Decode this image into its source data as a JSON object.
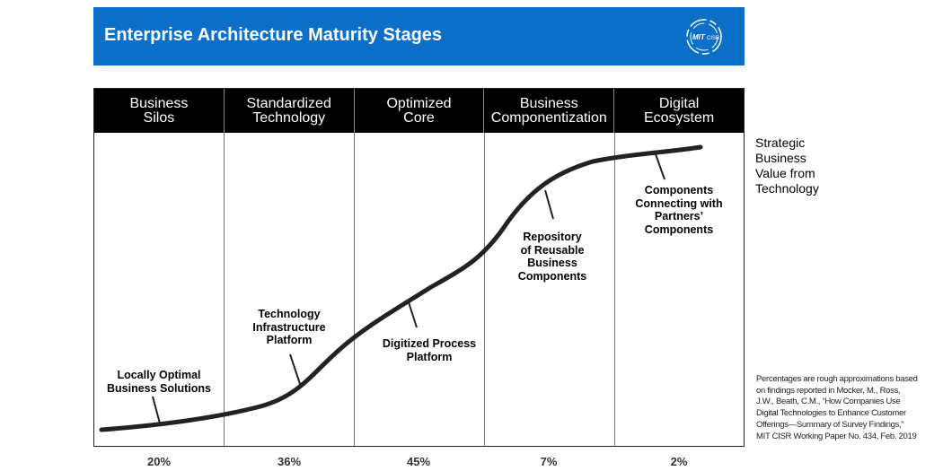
{
  "title": "Enterprise Architecture Maturity Stages",
  "logo": {
    "text": "MIT CISR",
    "icon": "mit-cisr-logo"
  },
  "stages": [
    {
      "label": "Business\nSilos",
      "percent": "20%"
    },
    {
      "label": "Standardized\nTechnology",
      "percent": "36%"
    },
    {
      "label": "Optimized\nCore",
      "percent": "45%"
    },
    {
      "label": "Business\nComponentization",
      "percent": "7%"
    },
    {
      "label": "Digital\nEcosystem",
      "percent": "2%"
    }
  ],
  "callouts": [
    "Locally Optimal\nBusiness Solutions",
    "Technology\nInfrastructure\nPlatform",
    "Digitized Process\nPlatform",
    "Repository\nof Reusable\nBusiness\nComponents",
    "Components\nConnecting with\nPartners’\nComponents"
  ],
  "y_label": "Strategic\nBusiness\nValue from\nTechnology",
  "note": "Percentages are rough approximations based on findings reported in Mocker, M., Ross, J.W., Beath, C.M., “How Companies Use Digital Technologies to Enhance Customer Offerings—Summary of Survey Findings,” MIT CISR Working Paper No. 434, Feb. 2019",
  "colors": {
    "banner": "#0b6fc8",
    "header": "#000000"
  }
}
